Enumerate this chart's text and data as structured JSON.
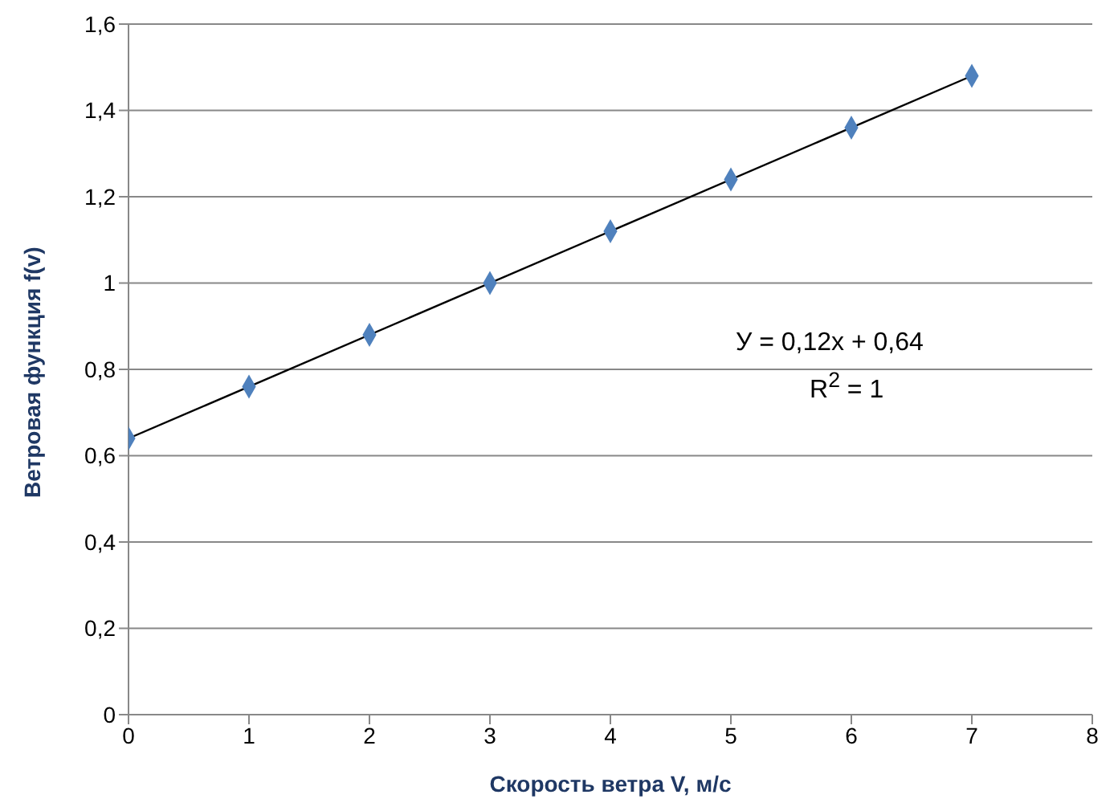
{
  "chart_data": {
    "type": "scatter",
    "xlabel": "Скорость ветра V, м/с",
    "ylabel": "Ветровая функция f(v)",
    "xlim": [
      0,
      8
    ],
    "xticks": [
      0,
      1,
      2,
      3,
      4,
      5,
      6,
      7,
      8
    ],
    "ylim": [
      0,
      1.6
    ],
    "yticks": [
      0,
      {
        "value": 0.2,
        "label": "0,2"
      },
      {
        "value": 0.4,
        "label": "0,4"
      },
      {
        "value": 0.6,
        "label": "0,6"
      },
      {
        "value": 0.8,
        "label": "0,8"
      },
      1,
      {
        "value": 1.2,
        "label": "1,2"
      },
      {
        "value": 1.4,
        "label": "1,4"
      },
      {
        "value": 1.6,
        "label": "1,6"
      }
    ],
    "grid": "y",
    "legend": false,
    "series": [
      {
        "type": "line",
        "color": "#000000",
        "x": [
          0,
          7
        ],
        "values": [
          0.64,
          1.48
        ],
        "marker": "none",
        "line_style": "solid"
      },
      {
        "color": "#4f81bd",
        "x": [
          0,
          1,
          2,
          3,
          4,
          5,
          6,
          7
        ],
        "values": [
          0.64,
          0.76,
          0.88,
          1.0,
          1.12,
          1.24,
          1.36,
          1.48
        ],
        "marker": "diamond"
      }
    ],
    "annotations": [
      "У = 0,12x + 0,64",
      "R$^{2}$ = 1"
    ]
  }
}
